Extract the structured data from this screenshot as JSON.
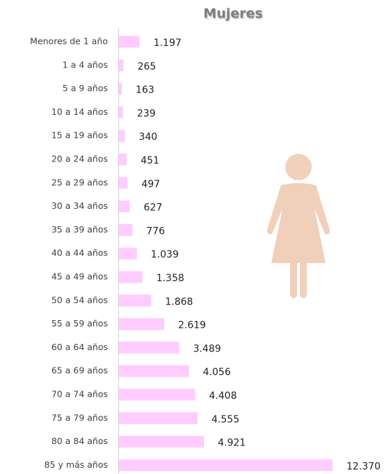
{
  "chart_data": {
    "type": "bar",
    "orientation": "horizontal",
    "title": "Mujeres",
    "categories": [
      "Menores de 1 año",
      "1 a 4 años",
      "5 a 9 años",
      "10 a 14 años",
      "15 a 19 años",
      "20 a 24 años",
      "25 a 29 años",
      "30 a 34 años",
      "35 a 39 años",
      "40 a 44 años",
      "45 a 49 años",
      "50 a 54 años",
      "55 a 59 años",
      "60 a 64 años",
      "65 a 69 años",
      "70 a 74 años",
      "75 a 79 años",
      "80 a 84 años",
      "85 y más años"
    ],
    "values": [
      1197,
      265,
      163,
      239,
      340,
      451,
      497,
      627,
      776,
      1039,
      1358,
      1868,
      2619,
      3489,
      4056,
      4408,
      4555,
      4921,
      12370
    ],
    "value_labels": [
      "1.197",
      "265",
      "163",
      "239",
      "340",
      "451",
      "497",
      "627",
      "776",
      "1.039",
      "1.358",
      "1.868",
      "2.619",
      "3.489",
      "4.056",
      "4.408",
      "4.555",
      "4.921",
      "12.370"
    ],
    "color": "#ffccff"
  }
}
